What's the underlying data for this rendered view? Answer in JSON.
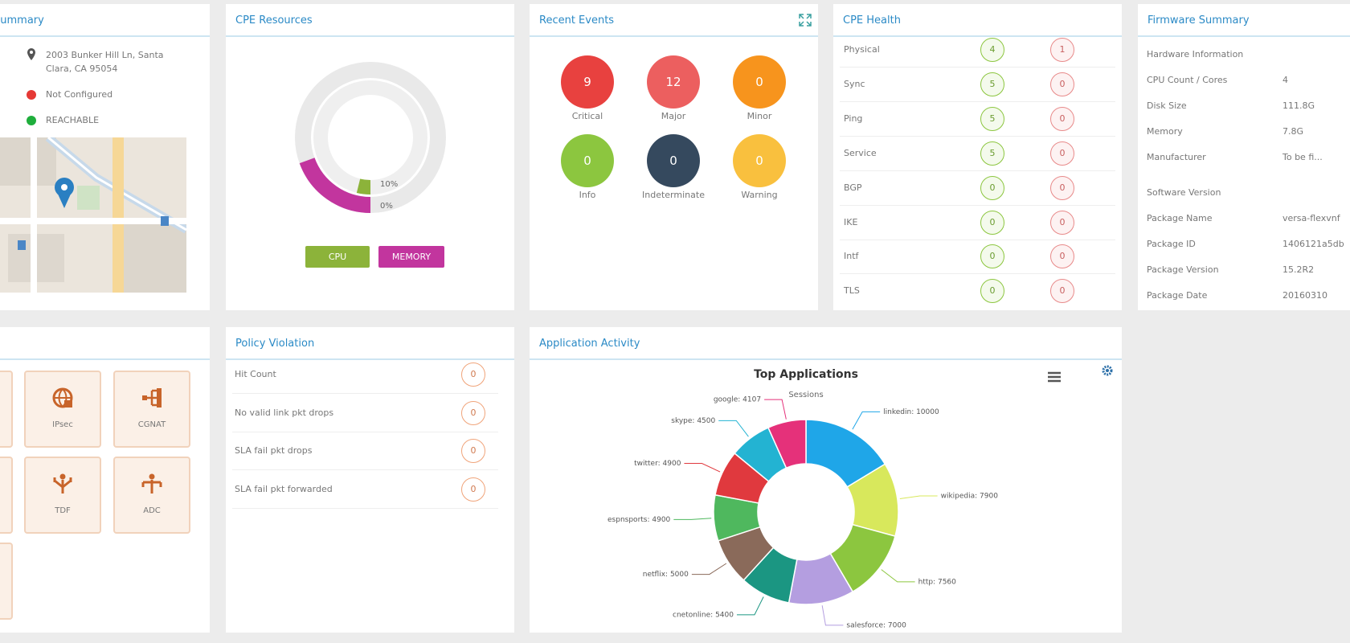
{
  "summary": {
    "title": "Summary",
    "address_line1": "2003 Bunker Hill Ln, Santa",
    "address_line2": "Clara, CA 95054",
    "config_status": "Not Configured",
    "reach_status": "REACHABLE"
  },
  "cpe_resources": {
    "title": "CPE Resources",
    "cpu_usage": "10%",
    "memory_usage": "0%",
    "cpu_button": "CPU",
    "memory_button": "MEMORY"
  },
  "recent_events": {
    "title": "Recent Events",
    "items": [
      {
        "label": "Critical",
        "count": "9",
        "color": "#e8413f"
      },
      {
        "label": "Major",
        "count": "12",
        "color": "#ec5f5f"
      },
      {
        "label": "Minor",
        "count": "0",
        "color": "#f7941d"
      },
      {
        "label": "Info",
        "count": "0",
        "color": "#8cc63f"
      },
      {
        "label": "Indeterminate",
        "count": "0",
        "color": "#35495e"
      },
      {
        "label": "Warning",
        "count": "0",
        "color": "#f9c03e"
      }
    ]
  },
  "cpe_health": {
    "title": "CPE Health",
    "rows": [
      {
        "name": "Physical",
        "up": "4",
        "down": "1"
      },
      {
        "name": "Sync",
        "up": "5",
        "down": "0"
      },
      {
        "name": "Ping",
        "up": "5",
        "down": "0"
      },
      {
        "name": "Service",
        "up": "5",
        "down": "0"
      },
      {
        "name": "BGP",
        "up": "0",
        "down": "0"
      },
      {
        "name": "IKE",
        "up": "0",
        "down": "0"
      },
      {
        "name": "Intf",
        "up": "0",
        "down": "0"
      },
      {
        "name": "TLS",
        "up": "0",
        "down": "0"
      }
    ]
  },
  "firmware_summary": {
    "title": "Firmware Summary",
    "hardware_heading": "Hardware Information",
    "hardware": [
      {
        "label": "CPU Count / Cores",
        "value": "4"
      },
      {
        "label": "Disk Size",
        "value": "111.8G"
      },
      {
        "label": "Memory",
        "value": "7.8G"
      },
      {
        "label": "Manufacturer",
        "value": "To be fi..."
      }
    ],
    "software_heading": "Software Version",
    "software": [
      {
        "label": "Package Name",
        "value": "versa-flexvnf"
      },
      {
        "label": "Package ID",
        "value": "1406121a5db"
      },
      {
        "label": "Package Version",
        "value": "15.2R2"
      },
      {
        "label": "Package Date",
        "value": "20160310"
      }
    ]
  },
  "services": {
    "tiles": [
      "IPsec",
      "CGNAT",
      "TDF",
      "ADC"
    ]
  },
  "policy_violation": {
    "title": "Policy Violation",
    "rows": [
      {
        "name": "Hit Count",
        "count": "0"
      },
      {
        "name": "No valid link pkt drops",
        "count": "0"
      },
      {
        "name": "SLA fail pkt drops",
        "count": "0"
      },
      {
        "name": "SLA fail pkt forwarded",
        "count": "0"
      }
    ]
  },
  "application_activity": {
    "title": "Application Activity"
  },
  "chart_data": {
    "type": "pie",
    "title": "Top Applications",
    "subtitle": "Sessions",
    "categories": [
      "linkedin",
      "wikipedia",
      "http",
      "salesforce",
      "cnetonline",
      "netflix",
      "espnsports",
      "twitter",
      "skype",
      "google"
    ],
    "values": [
      10000,
      7900,
      7560,
      7000,
      5400,
      5000,
      4900,
      4900,
      4500,
      4107
    ],
    "value_labels": [
      "linkedin: 10000",
      "wikipedia: 7900",
      "http: 7560",
      "salesforce: 7000",
      "cnetonline: 5400",
      "netflix: 5000",
      "espnsports: 4900",
      "twitter: 4900",
      "skype: 4500",
      "google: 4107"
    ],
    "colors": [
      "#1fa6e8",
      "#d8e85c",
      "#8cc63f",
      "#b49ee0",
      "#1b9682",
      "#8a6a5a",
      "#4fb85e",
      "#e0393e",
      "#23b3d2",
      "#e5317a"
    ]
  }
}
